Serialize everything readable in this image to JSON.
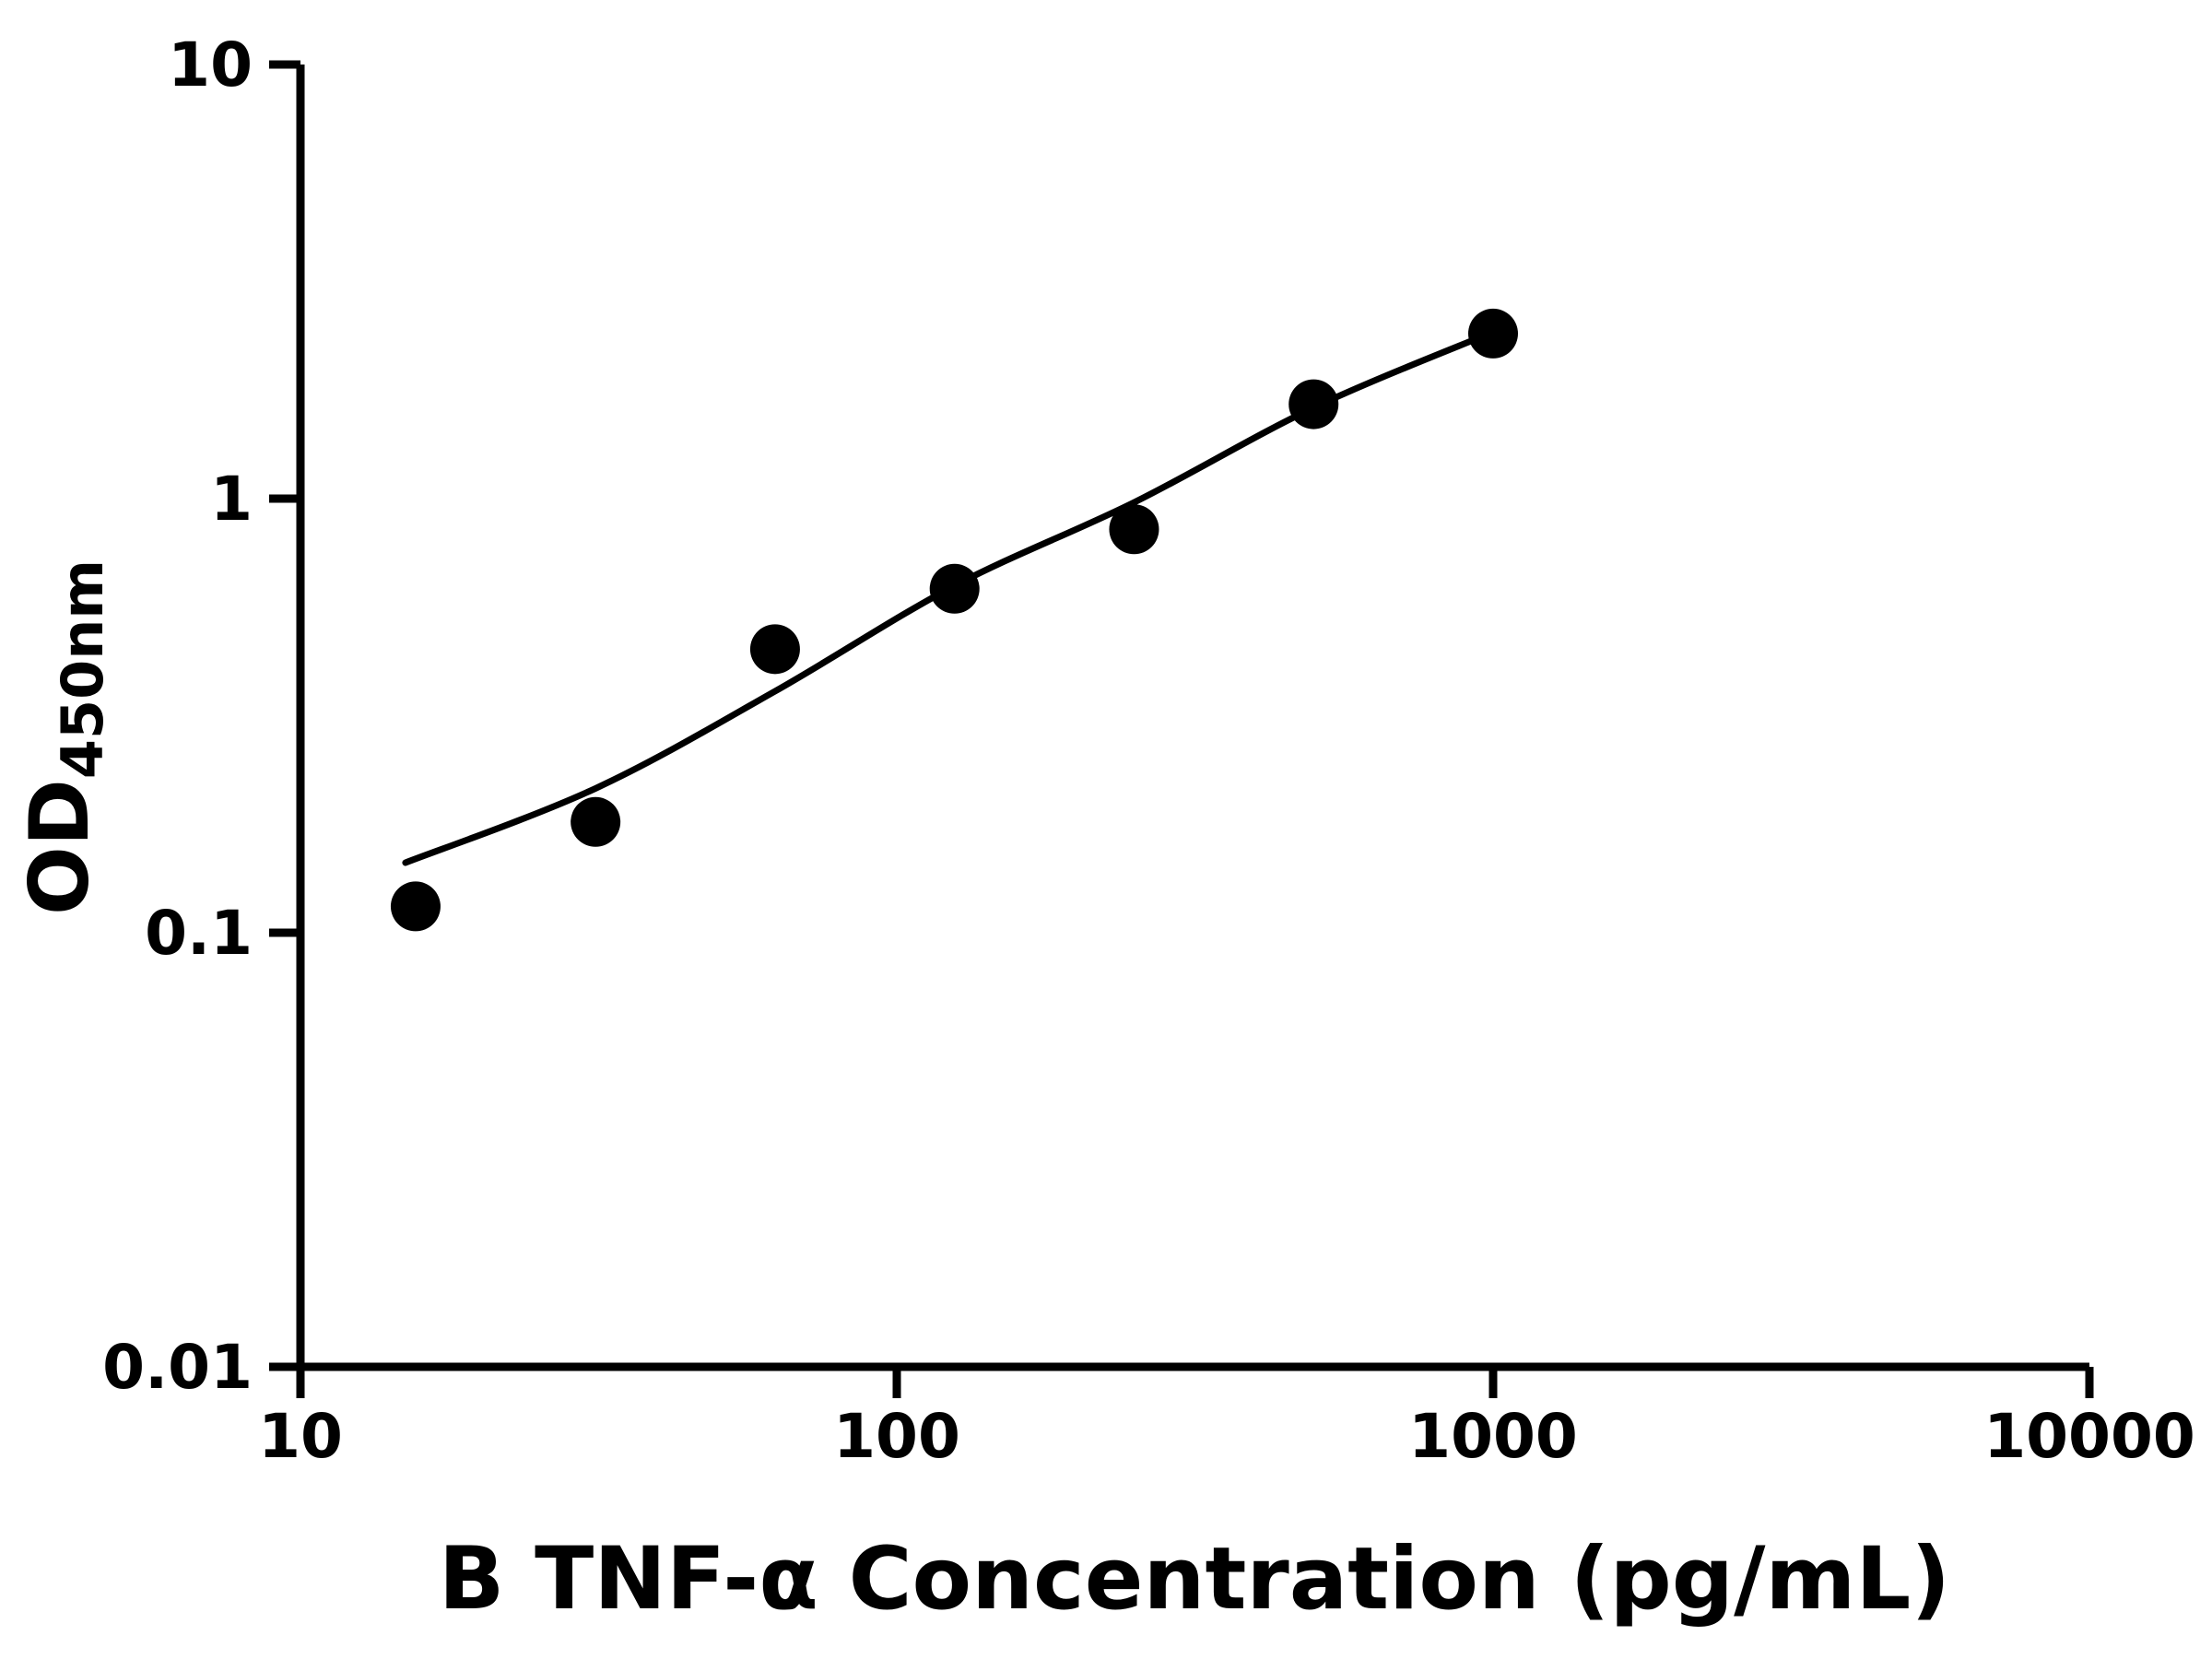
{
  "colors": {
    "background": "#ffffff",
    "axis": "#000000",
    "marker": "#000000",
    "curve": "#000000"
  },
  "chart_data": {
    "type": "scatter",
    "title": "",
    "xlabel": "B TNF-α Concentration (pg/mL)",
    "ylabel": "OD450nm",
    "ylabel_main": "OD",
    "ylabel_sub": "450nm",
    "x_scale": "log",
    "y_scale": "log",
    "xlim": [
      10,
      10000
    ],
    "ylim": [
      0.01,
      10
    ],
    "grid": false,
    "legend": "none",
    "x_ticks": [
      {
        "value": 10,
        "label": "10"
      },
      {
        "value": 100,
        "label": "100"
      },
      {
        "value": 1000,
        "label": "1000"
      },
      {
        "value": 10000,
        "label": "10000"
      }
    ],
    "y_ticks": [
      {
        "value": 10,
        "label": "10"
      },
      {
        "value": 1,
        "label": "1"
      },
      {
        "value": 0.1,
        "label": "0.1"
      },
      {
        "value": 0.01,
        "label": "0.01"
      }
    ],
    "series": [
      {
        "marker": "filled-circle",
        "color": "#000000",
        "x": [
          15.6,
          31.25,
          62.5,
          125,
          250,
          500,
          1000
        ],
        "y": [
          0.115,
          0.18,
          0.45,
          0.62,
          0.85,
          1.65,
          2.4
        ]
      }
    ],
    "fit_curve": {
      "color": "#000000",
      "x": [
        15,
        31.25,
        62.5,
        125,
        250,
        500,
        1000
      ],
      "y": [
        0.145,
        0.215,
        0.36,
        0.63,
        0.98,
        1.62,
        2.42
      ]
    }
  }
}
